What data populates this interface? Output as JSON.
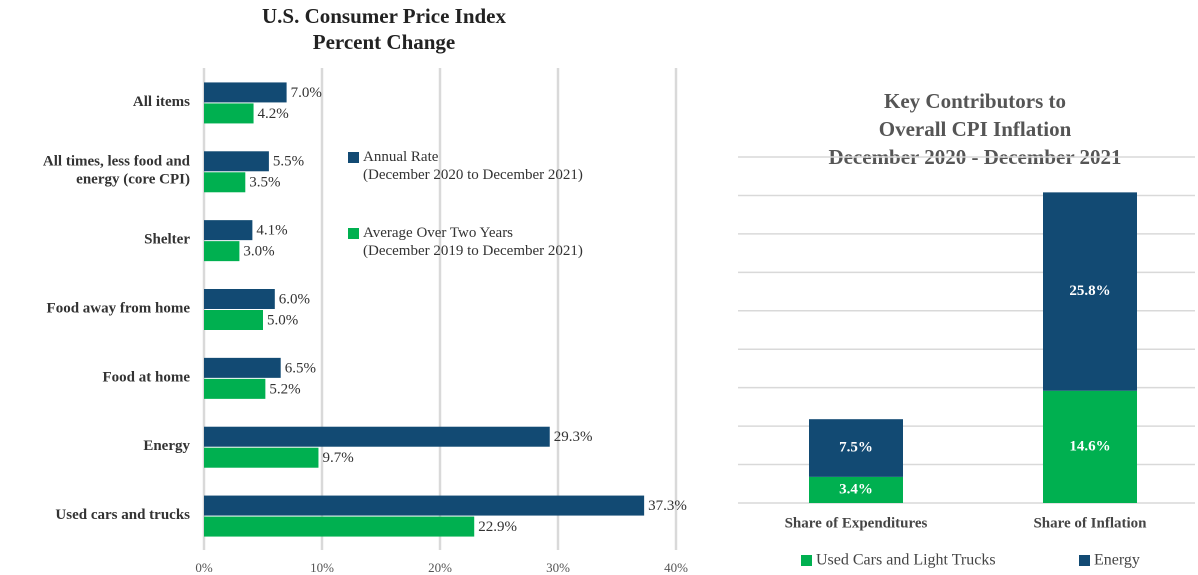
{
  "chart_data": [
    {
      "type": "barh",
      "title": [
        "U.S. Consumer Price Index",
        "Percent Change"
      ],
      "categories": [
        "All items",
        "All times, less food and\nenergy (core CPI)",
        "Shelter",
        "Food away from home",
        "Food at home",
        "Energy",
        "Used cars and trucks"
      ],
      "series": [
        {
          "name": "Annual Rate\n(December 2020 to December 2021)",
          "color": "#124a73",
          "values": [
            7.0,
            5.5,
            4.1,
            6.0,
            6.5,
            29.3,
            37.3
          ],
          "value_labels": [
            "7.0%",
            "5.5%",
            "4.1%",
            "6.0%",
            "6.5%",
            "29.3%",
            "37.3%"
          ]
        },
        {
          "name": "Average Over Two Years\n(December 2019 to December 2021)",
          "color": "#00b050",
          "values": [
            4.2,
            3.5,
            3.0,
            5.0,
            5.2,
            9.7,
            22.9
          ],
          "value_labels": [
            "4.2%",
            "3.5%",
            "3.0%",
            "5.0%",
            "5.2%",
            "9.7%",
            "22.9%"
          ]
        }
      ],
      "xlim": [
        0,
        40
      ],
      "xticks": [
        {
          "value": 0,
          "label": "0%"
        },
        {
          "value": 10,
          "label": "10%"
        },
        {
          "value": 20,
          "label": "20%"
        },
        {
          "value": 30,
          "label": "30%"
        },
        {
          "value": 40,
          "label": "40%"
        }
      ],
      "grid": true
    },
    {
      "type": "stacked_bar",
      "title": [
        "Key Contributors to",
        "Overall CPI  Inflation",
        "December 2020  -  December 2021"
      ],
      "categories": [
        "Share of Expenditures",
        "Share of Inflation"
      ],
      "series": [
        {
          "name": "Used Cars and Light Trucks",
          "color": "#00b050",
          "values": [
            3.4,
            14.6
          ],
          "value_labels": [
            "3.4%",
            "14.6%"
          ]
        },
        {
          "name": "Energy",
          "color": "#124a73",
          "values": [
            7.5,
            25.8
          ],
          "value_labels": [
            "7.5%",
            "25.8%"
          ]
        }
      ],
      "ylim": [
        0,
        45
      ],
      "yticks": [
        0,
        5,
        10,
        15,
        20,
        25,
        30,
        35,
        40,
        45
      ],
      "grid": true
    }
  ]
}
